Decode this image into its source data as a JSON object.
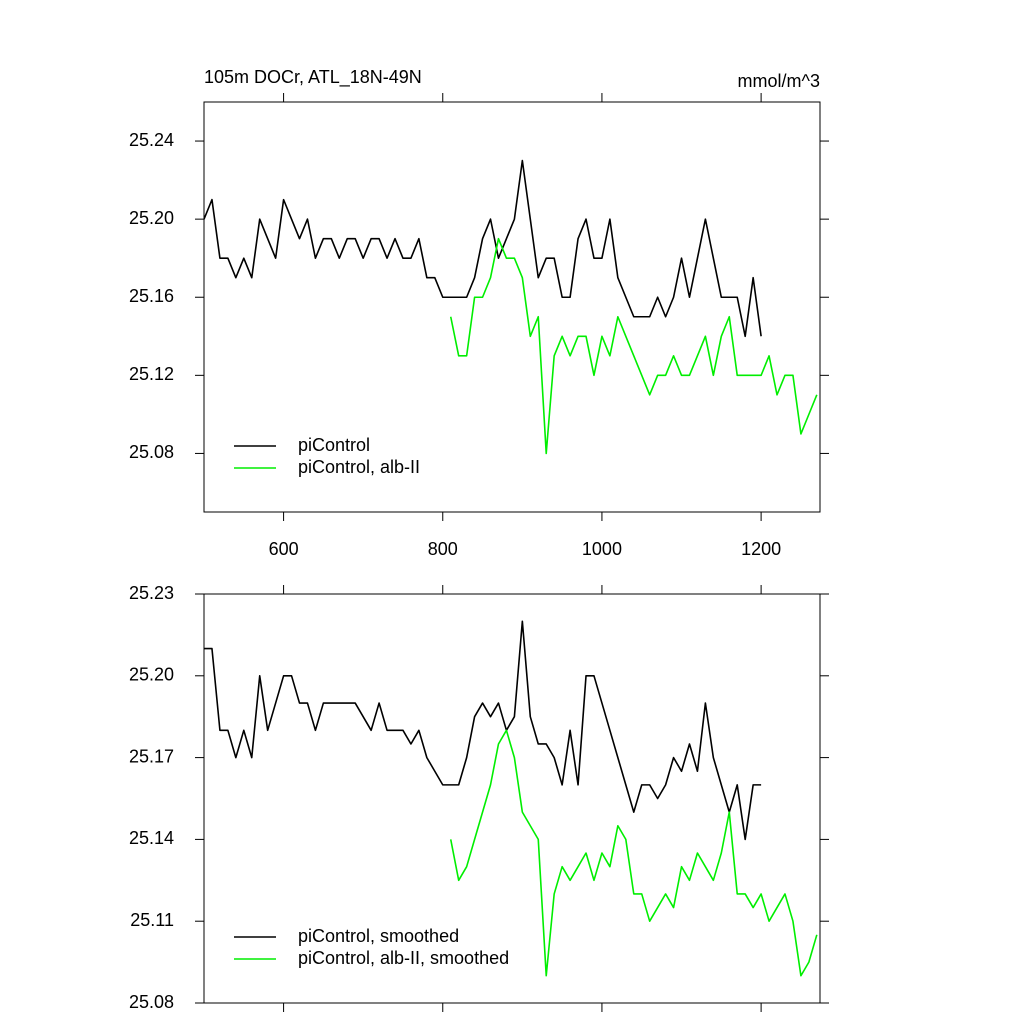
{
  "chart_data": [
    {
      "type": "line",
      "title": "105m DOCr, ATL_18N-49N",
      "units": "mmol/m^3",
      "x": [
        500,
        510,
        520,
        530,
        540,
        550,
        560,
        570,
        580,
        590,
        600,
        610,
        620,
        630,
        640,
        650,
        660,
        670,
        680,
        690,
        700,
        710,
        720,
        730,
        740,
        750,
        760,
        770,
        780,
        790,
        800,
        810,
        820,
        830,
        840,
        850,
        860,
        870,
        880,
        890,
        900,
        910,
        920,
        930,
        940,
        950,
        960,
        970,
        980,
        990,
        1000,
        1010,
        1020,
        1030,
        1040,
        1050,
        1060,
        1070,
        1080,
        1090,
        1100,
        1110,
        1120,
        1130,
        1140,
        1150,
        1160,
        1170,
        1180,
        1190,
        1200,
        1210,
        1220,
        1230,
        1240,
        1250,
        1260,
        1270
      ],
      "series": [
        {
          "name": "piControl",
          "color": "#000000",
          "values": [
            25.2,
            25.21,
            25.18,
            25.18,
            25.17,
            25.18,
            25.17,
            25.2,
            25.19,
            25.18,
            25.21,
            25.2,
            25.19,
            25.2,
            25.18,
            25.19,
            25.19,
            25.18,
            25.19,
            25.19,
            25.18,
            25.19,
            25.19,
            25.18,
            25.19,
            25.18,
            25.18,
            25.19,
            25.17,
            25.17,
            25.16,
            25.16,
            25.16,
            25.16,
            25.17,
            25.19,
            25.2,
            25.18,
            25.19,
            25.2,
            25.23,
            25.2,
            25.17,
            25.18,
            25.18,
            25.16,
            25.16,
            25.19,
            25.2,
            25.18,
            25.18,
            25.2,
            25.17,
            25.16,
            25.15,
            25.15,
            25.15,
            25.16,
            25.15,
            25.16,
            25.18,
            25.16,
            25.18,
            25.2,
            25.18,
            25.16,
            25.16,
            25.16,
            25.14,
            25.17,
            25.14,
            null,
            null,
            null,
            null,
            null,
            null,
            null
          ]
        },
        {
          "name": "piControl, alb-II",
          "color": "#00ee00",
          "values": [
            null,
            null,
            null,
            null,
            null,
            null,
            null,
            null,
            null,
            null,
            null,
            null,
            null,
            null,
            null,
            null,
            null,
            null,
            null,
            null,
            null,
            null,
            null,
            null,
            null,
            null,
            null,
            null,
            null,
            null,
            null,
            25.15,
            25.13,
            25.13,
            25.16,
            25.16,
            25.17,
            25.19,
            25.18,
            25.18,
            25.17,
            25.14,
            25.15,
            25.08,
            25.13,
            25.14,
            25.13,
            25.14,
            25.14,
            25.12,
            25.14,
            25.13,
            25.15,
            25.14,
            25.13,
            25.12,
            25.11,
            25.12,
            25.12,
            25.13,
            25.12,
            25.12,
            25.13,
            25.14,
            25.12,
            25.14,
            25.15,
            25.12,
            25.12,
            25.12,
            25.12,
            25.13,
            25.11,
            25.12,
            25.12,
            25.09,
            25.1,
            25.11
          ]
        }
      ],
      "xlim": [
        500,
        1274
      ],
      "xticks": [
        600,
        800,
        1000,
        1200
      ],
      "show_xtick_labels": true,
      "ylim": [
        25.05,
        25.26
      ],
      "yticks": [
        {
          "value": 25.08,
          "label": "25.08"
        },
        {
          "value": 25.12,
          "label": "25.12"
        },
        {
          "value": 25.16,
          "label": "25.16"
        },
        {
          "value": 25.2,
          "label": "25.20"
        },
        {
          "value": 25.24,
          "label": "25.24"
        }
      ],
      "legend": "lower left"
    },
    {
      "type": "line",
      "x": [
        500,
        510,
        520,
        530,
        540,
        550,
        560,
        570,
        580,
        590,
        600,
        610,
        620,
        630,
        640,
        650,
        660,
        670,
        680,
        690,
        700,
        710,
        720,
        730,
        740,
        750,
        760,
        770,
        780,
        790,
        800,
        810,
        820,
        830,
        840,
        850,
        860,
        870,
        880,
        890,
        900,
        910,
        920,
        930,
        940,
        950,
        960,
        970,
        980,
        990,
        1000,
        1010,
        1020,
        1030,
        1040,
        1050,
        1060,
        1070,
        1080,
        1090,
        1100,
        1110,
        1120,
        1130,
        1140,
        1150,
        1160,
        1170,
        1180,
        1190,
        1200,
        1210,
        1220,
        1230,
        1240,
        1250,
        1260,
        1270
      ],
      "series": [
        {
          "name": "piControl, smoothed",
          "color": "#000000",
          "values": [
            25.21,
            25.21,
            25.18,
            25.18,
            25.17,
            25.18,
            25.17,
            25.2,
            25.18,
            25.19,
            25.2,
            25.2,
            25.19,
            25.19,
            25.18,
            25.19,
            25.19,
            25.19,
            25.19,
            25.19,
            25.185,
            25.18,
            25.19,
            25.18,
            25.18,
            25.18,
            25.175,
            25.18,
            25.17,
            25.165,
            25.16,
            25.16,
            25.16,
            25.17,
            25.185,
            25.19,
            25.185,
            25.19,
            25.18,
            25.185,
            25.22,
            25.185,
            25.175,
            25.175,
            25.17,
            25.16,
            25.18,
            25.16,
            25.2,
            25.2,
            25.19,
            25.18,
            25.17,
            25.16,
            25.15,
            25.16,
            25.16,
            25.155,
            25.16,
            25.17,
            25.165,
            25.175,
            25.165,
            25.19,
            25.17,
            25.16,
            25.15,
            25.16,
            25.14,
            25.16,
            25.16,
            null,
            null,
            null,
            null,
            null,
            null,
            null
          ]
        },
        {
          "name": "piControl, alb-II, smoothed",
          "color": "#00ee00",
          "values": [
            null,
            null,
            null,
            null,
            null,
            null,
            null,
            null,
            null,
            null,
            null,
            null,
            null,
            null,
            null,
            null,
            null,
            null,
            null,
            null,
            null,
            null,
            null,
            null,
            null,
            null,
            null,
            null,
            null,
            null,
            null,
            25.14,
            25.125,
            25.13,
            25.14,
            25.15,
            25.16,
            25.175,
            25.18,
            25.17,
            25.15,
            25.145,
            25.14,
            25.09,
            25.12,
            25.13,
            25.125,
            25.13,
            25.135,
            25.125,
            25.135,
            25.13,
            25.145,
            25.14,
            25.12,
            25.12,
            25.11,
            25.115,
            25.12,
            25.115,
            25.13,
            25.125,
            25.135,
            25.13,
            25.125,
            25.135,
            25.15,
            25.12,
            25.12,
            25.115,
            25.12,
            25.11,
            25.115,
            25.12,
            25.11,
            25.09,
            25.095,
            25.105
          ]
        }
      ],
      "xlim": [
        500,
        1274
      ],
      "xticks": [
        600,
        800,
        1000,
        1200
      ],
      "show_xtick_labels": false,
      "ylim": [
        25.08,
        25.23
      ],
      "yticks": [
        {
          "value": 25.08,
          "label": "25.08"
        },
        {
          "value": 25.11,
          "label": "25.11"
        },
        {
          "value": 25.14,
          "label": "25.14"
        },
        {
          "value": 25.17,
          "label": "25.17"
        },
        {
          "value": 25.2,
          "label": "25.20"
        },
        {
          "value": 25.23,
          "label": "25.23"
        }
      ],
      "legend": "lower left"
    }
  ]
}
